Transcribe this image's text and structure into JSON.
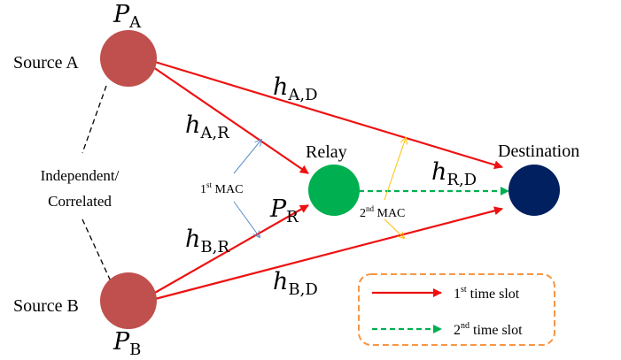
{
  "nodes": {
    "source_a": {
      "label": "Source A",
      "power_var": "P",
      "power_sub": "A",
      "color": "#c0504d"
    },
    "source_b": {
      "label": "Source B",
      "power_var": "P",
      "power_sub": "B",
      "color": "#c0504d"
    },
    "relay": {
      "label": "Relay",
      "power_var": "P",
      "power_sub": "R",
      "color": "#00b050"
    },
    "destination": {
      "label": "Destination",
      "color": "#002060"
    }
  },
  "correlation_label": {
    "line1": "Independent/",
    "line2": "Correlated"
  },
  "channels": {
    "h_ad": {
      "var": "h",
      "sub": "A,D"
    },
    "h_ar": {
      "var": "h",
      "sub": "A,R"
    },
    "h_rd": {
      "var": "h",
      "sub": "R,D"
    },
    "h_br": {
      "var": "h",
      "sub": "B,R"
    },
    "h_bd": {
      "var": "h",
      "sub": "B,D"
    }
  },
  "phases": {
    "mac1": {
      "ord": "1",
      "sup": "st",
      "text": " MAC"
    },
    "mac2": {
      "ord": "2",
      "sup": "nd",
      "text": " MAC"
    }
  },
  "legend": {
    "slot1": {
      "ord": "1",
      "sup": "st",
      "text": " time slot"
    },
    "slot2": {
      "ord": "2",
      "sup": "nd",
      "text": " time slot"
    }
  },
  "colors": {
    "first_slot": "#ee1111",
    "second_slot": "#00b050",
    "mac1_arrow": "#5b8fc9",
    "mac2_arrow": "#ffc000",
    "legend_border": "#f79646"
  }
}
